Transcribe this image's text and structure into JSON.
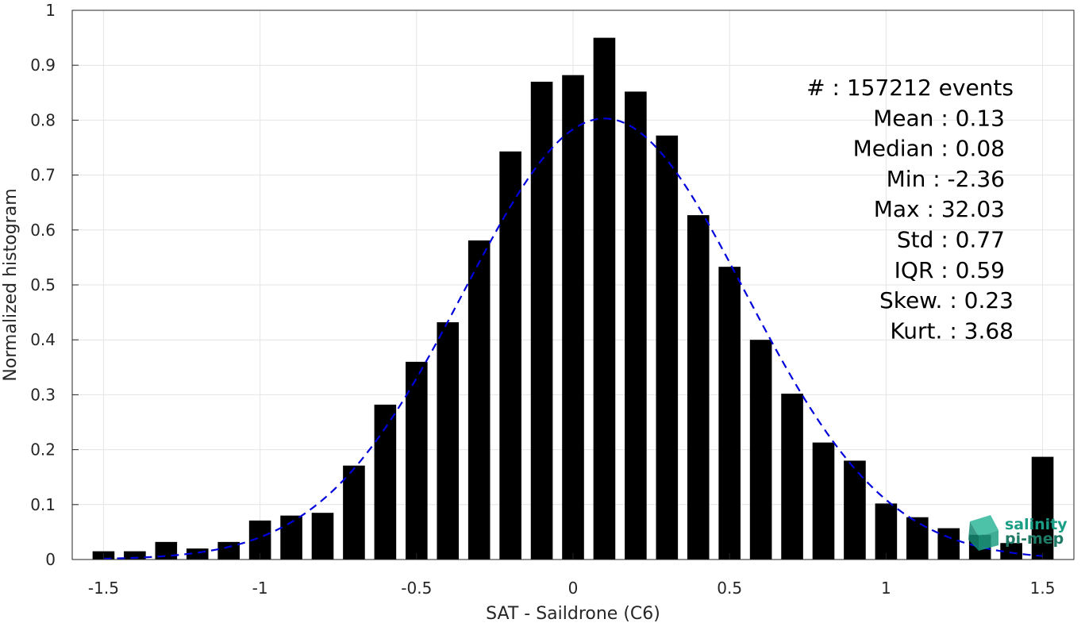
{
  "chart_data": {
    "type": "bar",
    "xlabel": "SAT - Saildrone (C6)",
    "ylabel": "Normalized histogram",
    "xlim": [
      -1.6,
      1.6
    ],
    "ylim": [
      0,
      1
    ],
    "xticks": [
      -1.5,
      -1,
      -0.5,
      0,
      0.5,
      1,
      1.5
    ],
    "xtick_labels": [
      "-1.5",
      "-1",
      "-0.5",
      "0",
      "0.5",
      "1",
      "1.5"
    ],
    "yticks": [
      0,
      0.1,
      0.2,
      0.3,
      0.4,
      0.5,
      0.6,
      0.7,
      0.8,
      0.9,
      1
    ],
    "ytick_labels": [
      "0",
      "0.1",
      "0.2",
      "0.3",
      "0.4",
      "0.5",
      "0.6",
      "0.7",
      "0.8",
      "0.9",
      "1"
    ],
    "grid": true,
    "bar_color": "#000000",
    "bar_width": 0.07,
    "x": [
      -1.5,
      -1.4,
      -1.3,
      -1.2,
      -1.1,
      -1.0,
      -0.9,
      -0.8,
      -0.7,
      -0.6,
      -0.5,
      -0.4,
      -0.3,
      -0.2,
      -0.1,
      0.0,
      0.1,
      0.2,
      0.3,
      0.4,
      0.5,
      0.6,
      0.7,
      0.8,
      0.9,
      1.0,
      1.1,
      1.2,
      1.3,
      1.4,
      1.5
    ],
    "values": [
      0.015,
      0.015,
      0.032,
      0.02,
      0.032,
      0.071,
      0.08,
      0.085,
      0.171,
      0.282,
      0.36,
      0.432,
      0.581,
      0.743,
      0.87,
      0.882,
      0.95,
      0.852,
      0.772,
      0.627,
      0.533,
      0.4,
      0.302,
      0.213,
      0.18,
      0.102,
      0.077,
      0.057,
      0.045,
      0.03,
      0.187
    ],
    "fit_curve": {
      "style": "dashed",
      "color": "#0000dd",
      "mean": 0.1,
      "std": 0.45,
      "peak": 0.803
    },
    "annotations": [
      {
        "name": "events",
        "text": "#  : 157212 events"
      },
      {
        "name": "mean",
        "text": "Mean : 0.13"
      },
      {
        "name": "median",
        "text": "Median : 0.08"
      },
      {
        "name": "min",
        "text": "Min : -2.36"
      },
      {
        "name": "max",
        "text": "Max : 32.03"
      },
      {
        "name": "std",
        "text": "Std : 0.77"
      },
      {
        "name": "iqr",
        "text": "IQR : 0.59"
      },
      {
        "name": "skew",
        "text": "Skew. : 0.23"
      },
      {
        "name": "kurt",
        "text": "Kurt. : 3.68"
      }
    ]
  },
  "logo": {
    "line1": "salinity",
    "line2": "pi-mep",
    "color1": "#1a9e86",
    "color2": "#1f7a66"
  }
}
